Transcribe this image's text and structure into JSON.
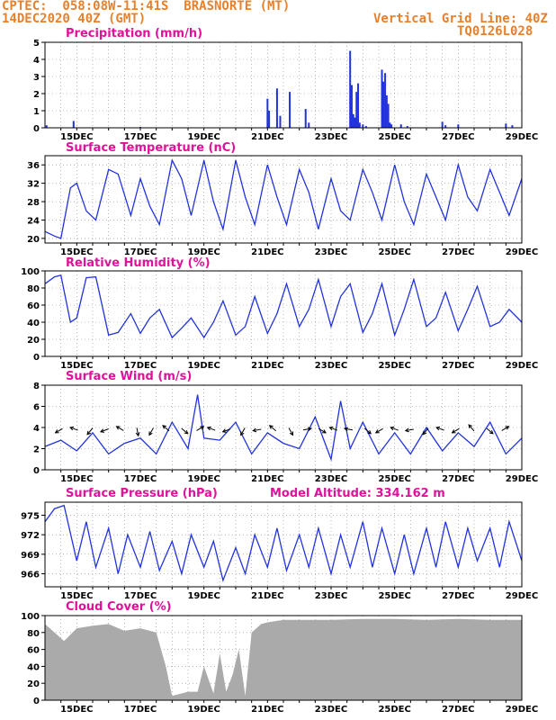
{
  "header": {
    "left1": "CPTEC:  058:08W-11:41S  BRASNORTE (MT)",
    "left2": "14DEC2020 40Z (GMT)",
    "right1": "Vertical Grid Line: 40Z",
    "right2": "TQ0126L028"
  },
  "colors": {
    "accent": "#e8802a",
    "title": "#e0119a",
    "line": "#2233dd",
    "bar": "#2233dd",
    "cloud": "#aaaaaa"
  },
  "x_axis": {
    "labels": [
      "15DEC",
      "17DEC",
      "19DEC",
      "21DEC",
      "23DEC",
      "25DEC",
      "27DEC",
      "29DEC"
    ],
    "label_days": [
      15,
      17,
      19,
      21,
      23,
      25,
      27,
      29
    ],
    "range_days": [
      14.0,
      29.0
    ]
  },
  "panels": {
    "precip": {
      "title": "Precipitation (mm/h)",
      "ylim": [
        0,
        5
      ],
      "yticks": [
        "0",
        "1",
        "2",
        "3",
        "4",
        "5"
      ]
    },
    "temp": {
      "title": "Surface Temperature (nC)",
      "ylim": [
        19,
        38
      ],
      "yticks": [
        "20",
        "24",
        "28",
        "32",
        "36"
      ]
    },
    "rh": {
      "title": "Relative Humidity (%)",
      "ylim": [
        0,
        100
      ],
      "yticks": [
        "0",
        "20",
        "40",
        "60",
        "80",
        "100"
      ]
    },
    "wind": {
      "title": "Surface Wind (m/s)",
      "ylim": [
        0,
        8
      ],
      "yticks": [
        "0",
        "2",
        "4",
        "6",
        "8"
      ]
    },
    "pres": {
      "title": "Surface Pressure (hPa)",
      "extra": "Model Altitude: 334.162 m",
      "ylim": [
        964,
        977
      ],
      "yticks": [
        "966",
        "969",
        "972",
        "975"
      ]
    },
    "cloud": {
      "title": "Cloud Cover (%)",
      "ylim": [
        0,
        100
      ],
      "yticks": [
        "0",
        "20",
        "40",
        "60",
        "80",
        "100"
      ]
    }
  },
  "chart_data": [
    {
      "type": "bar",
      "title": "Precipitation (mm/h)",
      "ylim": [
        0,
        5
      ],
      "x": [
        14.05,
        14.9,
        17.0,
        21.0,
        21.05,
        21.3,
        21.4,
        21.7,
        22.2,
        22.3,
        23.6,
        23.65,
        23.7,
        23.75,
        23.8,
        23.85,
        23.9,
        24.0,
        24.1,
        24.6,
        24.65,
        24.7,
        24.75,
        24.8,
        24.85,
        24.9,
        25.2,
        25.4,
        26.5,
        26.6,
        27.0,
        28.5,
        28.7
      ],
      "values": [
        0.15,
        0.4,
        0.05,
        1.7,
        1.0,
        2.3,
        0.7,
        2.1,
        1.1,
        0.3,
        4.5,
        2.5,
        0.8,
        0.6,
        2.1,
        2.6,
        0.3,
        0.2,
        0.1,
        3.4,
        2.7,
        3.2,
        1.9,
        1.4,
        0.3,
        0.2,
        0.2,
        0.1,
        0.35,
        0.15,
        0.2,
        0.25,
        0.15
      ]
    },
    {
      "type": "line",
      "title": "Surface Temperature (nC)",
      "ylim": [
        19,
        38
      ],
      "x": [
        14.0,
        14.3,
        14.5,
        14.8,
        15.0,
        15.3,
        15.6,
        16.0,
        16.3,
        16.7,
        17.0,
        17.3,
        17.6,
        18.0,
        18.3,
        18.6,
        19.0,
        19.3,
        19.6,
        20.0,
        20.3,
        20.6,
        21.0,
        21.3,
        21.6,
        22.0,
        22.3,
        22.6,
        23.0,
        23.3,
        23.6,
        24.0,
        24.3,
        24.6,
        25.0,
        25.3,
        25.6,
        26.0,
        26.3,
        26.6,
        27.0,
        27.3,
        27.6,
        28.0,
        28.3,
        28.6,
        29.0
      ],
      "values": [
        21.5,
        20.5,
        20,
        31,
        32,
        26,
        24,
        35,
        34,
        25,
        33,
        27,
        23,
        37,
        33,
        25,
        37,
        28,
        22,
        37,
        29,
        23,
        36,
        29,
        23,
        35,
        30,
        22,
        33,
        26,
        24,
        35,
        30,
        24,
        36,
        28,
        23,
        34,
        29,
        24,
        36,
        29,
        26,
        35,
        30,
        25,
        33
      ]
    },
    {
      "type": "line",
      "title": "Relative Humidity (%)",
      "ylim": [
        0,
        100
      ],
      "x": [
        14.0,
        14.3,
        14.5,
        14.8,
        15.0,
        15.3,
        15.6,
        16.0,
        16.3,
        16.7,
        17.0,
        17.3,
        17.6,
        18.0,
        18.3,
        18.6,
        19.0,
        19.3,
        19.6,
        20.0,
        20.3,
        20.6,
        21.0,
        21.3,
        21.6,
        22.0,
        22.3,
        22.6,
        23.0,
        23.3,
        23.6,
        24.0,
        24.3,
        24.6,
        25.0,
        25.3,
        25.6,
        26.0,
        26.3,
        26.6,
        27.0,
        27.3,
        27.6,
        28.0,
        28.3,
        28.6,
        29.0
      ],
      "values": [
        85,
        93,
        95,
        40,
        45,
        92,
        93,
        25,
        28,
        50,
        27,
        45,
        55,
        22,
        33,
        45,
        22,
        40,
        65,
        25,
        35,
        70,
        27,
        50,
        85,
        35,
        55,
        90,
        35,
        70,
        85,
        28,
        50,
        85,
        25,
        55,
        90,
        35,
        45,
        75,
        30,
        55,
        82,
        35,
        40,
        55,
        40
      ]
    },
    {
      "type": "line",
      "title": "Surface Wind (m/s)",
      "ylim": [
        0,
        8
      ],
      "x": [
        14.0,
        14.5,
        15.0,
        15.5,
        16.0,
        16.5,
        17.0,
        17.5,
        18.0,
        18.5,
        18.8,
        19.0,
        19.5,
        20.0,
        20.5,
        21.0,
        21.5,
        22.0,
        22.5,
        23.0,
        23.3,
        23.6,
        24.0,
        24.5,
        25.0,
        25.5,
        26.0,
        26.5,
        27.0,
        27.5,
        28.0,
        28.5,
        29.0
      ],
      "values": [
        2.2,
        2.8,
        1.8,
        3.5,
        1.5,
        2.5,
        3.0,
        1.5,
        4.5,
        2.0,
        7.1,
        3.0,
        2.8,
        4.5,
        1.5,
        3.5,
        2.5,
        2.0,
        5.0,
        1.0,
        6.5,
        2.0,
        4.5,
        1.5,
        3.5,
        1.5,
        4.0,
        1.8,
        3.5,
        2.2,
        4.5,
        1.5,
        3.0
      ]
    },
    {
      "type": "line",
      "title": "Surface Pressure (hPa)",
      "ylim": [
        964,
        977
      ],
      "x": [
        14.0,
        14.3,
        14.6,
        15.0,
        15.3,
        15.6,
        16.0,
        16.3,
        16.6,
        17.0,
        17.3,
        17.6,
        18.0,
        18.3,
        18.6,
        19.0,
        19.3,
        19.6,
        20.0,
        20.3,
        20.6,
        21.0,
        21.3,
        21.6,
        22.0,
        22.3,
        22.6,
        23.0,
        23.3,
        23.6,
        24.0,
        24.3,
        24.6,
        25.0,
        25.3,
        25.6,
        26.0,
        26.3,
        26.6,
        27.0,
        27.3,
        27.6,
        28.0,
        28.3,
        28.6,
        29.0
      ],
      "values": [
        974,
        976,
        976.5,
        968,
        974,
        967,
        973,
        966,
        972,
        967,
        972.5,
        966.5,
        971,
        966,
        972,
        967,
        971,
        965,
        970,
        966,
        972,
        967,
        973,
        966.5,
        972,
        967,
        973,
        966,
        972,
        967,
        974,
        967,
        973,
        966,
        972,
        966,
        973,
        967,
        974,
        967,
        973,
        968,
        973,
        967,
        974,
        968
      ]
    },
    {
      "type": "area",
      "title": "Cloud Cover (%)",
      "ylim": [
        0,
        100
      ],
      "x": [
        14.0,
        14.3,
        14.6,
        15.0,
        15.5,
        16.0,
        16.5,
        17.0,
        17.5,
        17.8,
        18.0,
        18.5,
        18.8,
        19.0,
        19.3,
        19.5,
        19.7,
        19.9,
        20.1,
        20.3,
        20.5,
        20.8,
        21.0,
        21.5,
        22.0,
        23.0,
        24.0,
        25.0,
        26.0,
        27.0,
        28.0,
        29.0
      ],
      "values": [
        90,
        80,
        70,
        85,
        88,
        90,
        82,
        85,
        80,
        40,
        5,
        10,
        10,
        40,
        8,
        55,
        10,
        30,
        60,
        5,
        80,
        90,
        92,
        95,
        95,
        95,
        96,
        96,
        95,
        96,
        95,
        95
      ]
    }
  ]
}
